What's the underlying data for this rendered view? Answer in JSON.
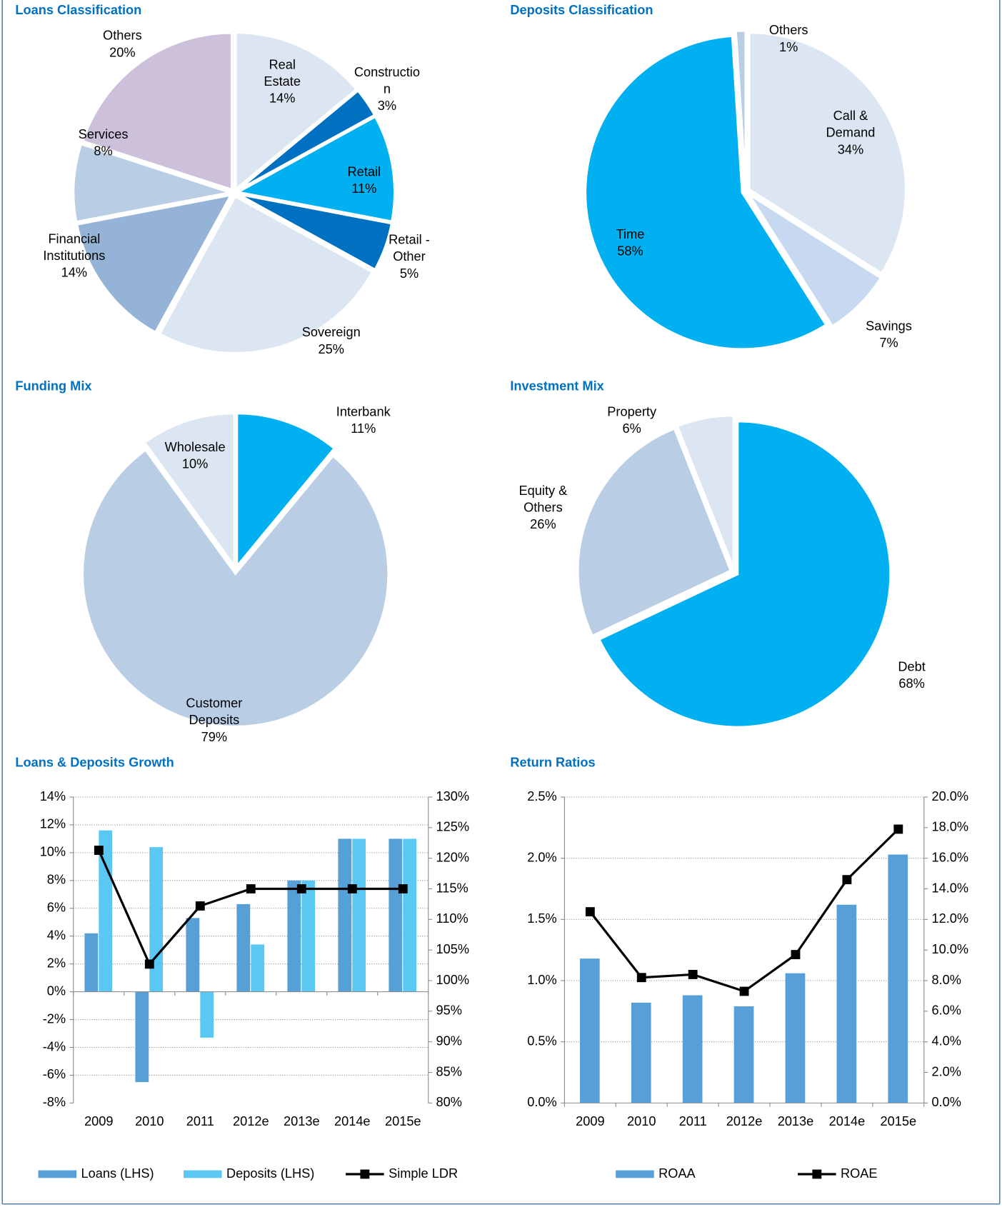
{
  "chart_data": [
    {
      "type": "pie",
      "title": "Loans Classification",
      "categories": [
        "Real Estate",
        "Construction",
        "Retail",
        "Retail - Other",
        "Sovereign",
        "Financial Institutions",
        "Services",
        "Others"
      ],
      "values": [
        14,
        3,
        11,
        5,
        25,
        14,
        8,
        20
      ],
      "value_labels": [
        "14%",
        "3%",
        "11%",
        "5%",
        "25%",
        "14%",
        "8%",
        "20%"
      ],
      "colors": [
        "#dce6f2",
        "#0070c0",
        "#00b0f0",
        "#0070c0",
        "#dce6f2",
        "#95b3d7",
        "#b9cde5",
        "#ccc0da"
      ]
    },
    {
      "type": "pie",
      "title": "Deposits Classification",
      "categories": [
        "Call & Demand",
        "Savings",
        "Time",
        "Others"
      ],
      "values": [
        34,
        7,
        58,
        1
      ],
      "value_labels": [
        "34%",
        "7%",
        "58%",
        "1%"
      ],
      "colors": [
        "#dce6f2",
        "#c6d9f1",
        "#00b0f0",
        "#b9cde5"
      ]
    },
    {
      "type": "pie",
      "title": "Funding Mix",
      "categories": [
        "Interbank",
        "Customer Deposits",
        "Wholesale"
      ],
      "values": [
        11,
        79,
        10
      ],
      "value_labels": [
        "11%",
        "79%",
        "10%"
      ],
      "colors": [
        "#00b0f0",
        "#b9cde5",
        "#dce6f2"
      ]
    },
    {
      "type": "pie",
      "title": "Investment Mix",
      "categories": [
        "Debt",
        "Equity & Others",
        "Property"
      ],
      "values": [
        68,
        26,
        6
      ],
      "value_labels": [
        "68%",
        "26%",
        "6%"
      ],
      "colors": [
        "#00b0f0",
        "#b9cde5",
        "#dce6f2"
      ]
    },
    {
      "type": "bar",
      "title": "Loans & Deposits Growth",
      "categories": [
        "2009",
        "2010",
        "2011",
        "2012e",
        "2013e",
        "2014e",
        "2015e"
      ],
      "series": [
        {
          "name": "Loans (LHS)",
          "color": "#579fd7",
          "values": [
            4.2,
            -6.5,
            5.3,
            6.3,
            8.0,
            11.0,
            11.0
          ]
        },
        {
          "name": "Deposits (LHS)",
          "color": "#5bc8f3",
          "values": [
            11.6,
            10.4,
            -3.3,
            3.4,
            8.0,
            11.0,
            11.0
          ]
        },
        {
          "name": "Simple LDR",
          "color": "#000000",
          "type": "line",
          "axis": "y2",
          "values": [
            121.3,
            102.7,
            112.2,
            115,
            115,
            115,
            115
          ]
        }
      ],
      "ylim": [
        -8,
        14
      ],
      "yticks": [
        {
          "value": -8,
          "label": "-8%"
        },
        {
          "value": -6,
          "label": "-6%"
        },
        {
          "value": -4,
          "label": "-4%"
        },
        {
          "value": -2,
          "label": "-2%"
        },
        {
          "value": 0,
          "label": "0%"
        },
        {
          "value": 2,
          "label": "2%"
        },
        {
          "value": 4,
          "label": "4%"
        },
        {
          "value": 6,
          "label": "6%"
        },
        {
          "value": 8,
          "label": "8%"
        },
        {
          "value": 10,
          "label": "10%"
        },
        {
          "value": 12,
          "label": "12%"
        },
        {
          "value": 14,
          "label": "14%"
        }
      ],
      "y2lim": [
        80,
        130
      ],
      "y2ticks": [
        {
          "value": 80,
          "label": "80%"
        },
        {
          "value": 85,
          "label": "85%"
        },
        {
          "value": 90,
          "label": "90%"
        },
        {
          "value": 95,
          "label": "95%"
        },
        {
          "value": 100,
          "label": "100%"
        },
        {
          "value": 105,
          "label": "105%"
        },
        {
          "value": 110,
          "label": "110%"
        },
        {
          "value": 115,
          "label": "115%"
        },
        {
          "value": 120,
          "label": "120%"
        },
        {
          "value": 125,
          "label": "125%"
        },
        {
          "value": 130,
          "label": "130%"
        }
      ],
      "grid": true,
      "legend": "bottom"
    },
    {
      "type": "bar",
      "title": "Return Ratios",
      "categories": [
        "2009",
        "2010",
        "2011",
        "2012e",
        "2013e",
        "2014e",
        "2015e"
      ],
      "series": [
        {
          "name": "ROAA",
          "color": "#579fd7",
          "values": [
            1.18,
            0.82,
            0.88,
            0.79,
            1.06,
            1.62,
            2.03
          ]
        },
        {
          "name": "ROAE",
          "color": "#000000",
          "type": "line",
          "axis": "y2",
          "values": [
            12.5,
            8.2,
            8.4,
            7.3,
            9.7,
            14.6,
            17.9
          ]
        }
      ],
      "ylim": [
        0,
        2.5
      ],
      "yticks": [
        {
          "value": 0,
          "label": "0.0%"
        },
        {
          "value": 0.5,
          "label": "0.5%"
        },
        {
          "value": 1,
          "label": "1.0%"
        },
        {
          "value": 1.5,
          "label": "1.5%"
        },
        {
          "value": 2,
          "label": "2.0%"
        },
        {
          "value": 2.5,
          "label": "2.5%"
        }
      ],
      "y2lim": [
        0,
        20
      ],
      "y2ticks": [
        {
          "value": 0,
          "label": "0.0%"
        },
        {
          "value": 2,
          "label": "2.0%"
        },
        {
          "value": 4,
          "label": "4.0%"
        },
        {
          "value": 6,
          "label": "6.0%"
        },
        {
          "value": 8,
          "label": "8.0%"
        },
        {
          "value": 10,
          "label": "10.0%"
        },
        {
          "value": 12,
          "label": "12.0%"
        },
        {
          "value": 14,
          "label": "14.0%"
        },
        {
          "value": 16,
          "label": "16.0%"
        },
        {
          "value": 18,
          "label": "18.0%"
        },
        {
          "value": 20,
          "label": "20.0%"
        }
      ],
      "grid": true,
      "legend": "bottom"
    }
  ]
}
